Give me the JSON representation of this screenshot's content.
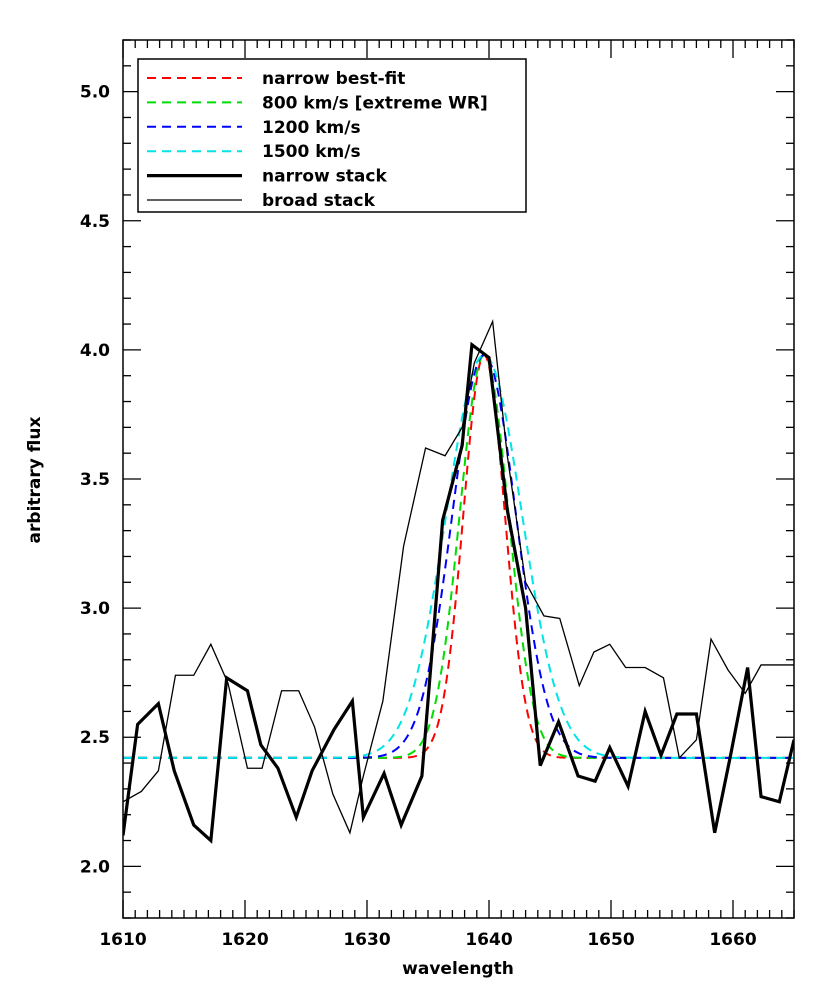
{
  "chart_data": {
    "type": "line",
    "title": "",
    "xlabel": "wavelength",
    "ylabel": "arbitrary flux",
    "xlim": [
      1610,
      1665
    ],
    "ylim": [
      1.8,
      5.2
    ],
    "x_ticks": [
      1610,
      1620,
      1630,
      1640,
      1650,
      1660
    ],
    "y_ticks": [
      2.0,
      2.5,
      3.0,
      3.5,
      4.0,
      4.5,
      5.0
    ],
    "x_tick_labels": [
      "1610",
      "1620",
      "1630",
      "1640",
      "1650",
      "1660"
    ],
    "y_tick_labels": [
      "2.0",
      "2.5",
      "3.0",
      "3.5",
      "4.0",
      "4.5",
      "5.0"
    ],
    "grid": false,
    "legend_position": "top-left",
    "series": [
      {
        "name": "narrow best-fit",
        "style": "dashed",
        "color": "#ff0000",
        "baseline": 2.42,
        "amplitude": 1.56,
        "center": 1639.6,
        "sigma": 1.7
      },
      {
        "name": "800 km/s [extreme WR]",
        "style": "dashed",
        "color": "#00dd00",
        "baseline": 2.42,
        "amplitude": 1.56,
        "center": 1639.6,
        "sigma": 2.0
      },
      {
        "name": "1200 km/s",
        "style": "dashed",
        "color": "#0000ff",
        "baseline": 2.42,
        "amplitude": 1.56,
        "center": 1639.6,
        "sigma": 2.6
      },
      {
        "name": "1500 km/s",
        "style": "dashed",
        "color": "#00e5e5",
        "baseline": 2.42,
        "amplitude": 1.56,
        "center": 1639.6,
        "sigma": 3.1
      },
      {
        "name": "narrow stack",
        "style": "thick",
        "color": "#000000",
        "x": [
          1610.0,
          1611.2,
          1612.9,
          1614.2,
          1615.8,
          1617.2,
          1618.5,
          1620.2,
          1621.3,
          1622.7,
          1624.2,
          1625.5,
          1627.3,
          1628.8,
          1629.7,
          1631.4,
          1632.8,
          1634.5,
          1636.2,
          1637.8,
          1638.6,
          1640.0,
          1641.5,
          1643.0,
          1644.2,
          1645.7,
          1647.3,
          1648.7,
          1649.9,
          1651.4,
          1652.8,
          1654.1,
          1655.4,
          1657.0,
          1658.5,
          1659.8,
          1661.2,
          1662.3,
          1663.8,
          1665.0
        ],
        "y": [
          2.12,
          2.55,
          2.63,
          2.37,
          2.16,
          2.1,
          2.73,
          2.68,
          2.47,
          2.38,
          2.19,
          2.37,
          2.53,
          2.64,
          2.19,
          2.36,
          2.16,
          2.35,
          3.34,
          3.63,
          4.02,
          3.97,
          3.38,
          3.0,
          2.39,
          2.56,
          2.35,
          2.33,
          2.46,
          2.31,
          2.6,
          2.43,
          2.59,
          2.59,
          2.13,
          2.43,
          2.77,
          2.27,
          2.25,
          2.49
        ]
      },
      {
        "name": "broad stack",
        "style": "thin",
        "color": "#000000",
        "x": [
          1610.0,
          1611.5,
          1612.9,
          1614.3,
          1615.8,
          1617.2,
          1618.6,
          1620.2,
          1621.4,
          1623.0,
          1624.4,
          1625.7,
          1627.2,
          1628.6,
          1629.7,
          1631.3,
          1633.0,
          1634.8,
          1636.4,
          1637.8,
          1638.8,
          1640.3,
          1641.5,
          1643.0,
          1644.5,
          1645.8,
          1647.4,
          1648.6,
          1649.9,
          1651.2,
          1652.8,
          1654.3,
          1655.6,
          1657.0,
          1658.2,
          1659.6,
          1661.0,
          1662.3,
          1663.8,
          1665.0
        ],
        "y": [
          2.25,
          2.29,
          2.37,
          2.74,
          2.74,
          2.86,
          2.71,
          2.38,
          2.38,
          2.68,
          2.68,
          2.54,
          2.28,
          2.13,
          2.35,
          2.64,
          3.24,
          3.62,
          3.59,
          3.7,
          3.95,
          4.11,
          3.59,
          3.1,
          2.97,
          2.96,
          2.7,
          2.83,
          2.86,
          2.77,
          2.77,
          2.73,
          2.42,
          2.49,
          2.88,
          2.76,
          2.67,
          2.78,
          2.78,
          2.78
        ]
      }
    ]
  }
}
